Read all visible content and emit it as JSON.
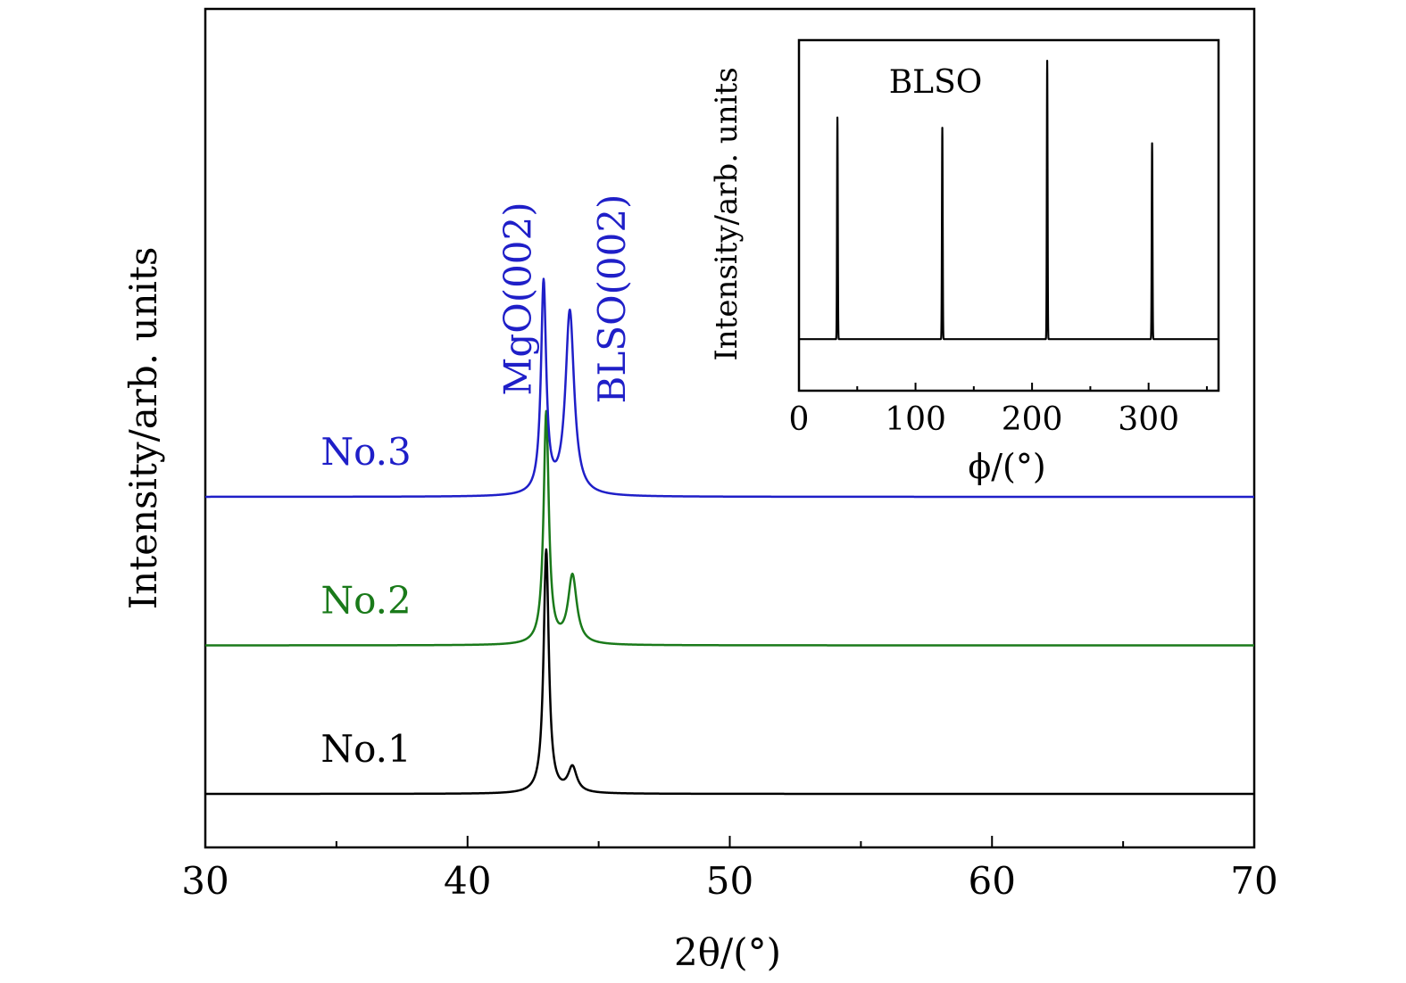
{
  "chart_data": [
    {
      "type": "line",
      "xlabel": "2θ/(°)",
      "ylabel": "Intensity/arb. units",
      "xlim": [
        30,
        70
      ],
      "xticks": [
        30,
        40,
        50,
        60,
        70
      ],
      "y_scale": "arbitrary units, traces vertically offset",
      "series": [
        {
          "name": "No.1",
          "color": "#000000",
          "baseline": 0,
          "peaks": [
            {
              "x": 43.0,
              "height": 8.2,
              "width": 0.12
            },
            {
              "x": 44.0,
              "height": 0.85,
              "width": 0.2
            }
          ]
        },
        {
          "name": "No.2",
          "color": "#1a7a1a",
          "baseline": 5,
          "peaks": [
            {
              "x": 43.0,
              "height": 7.8,
              "width": 0.12
            },
            {
              "x": 44.0,
              "height": 2.3,
              "width": 0.2
            }
          ]
        },
        {
          "name": "No.3",
          "color": "#1f1fc8",
          "baseline": 10,
          "peaks": [
            {
              "x": 42.9,
              "height": 7.1,
              "width": 0.12
            },
            {
              "x": 43.9,
              "height": 6.2,
              "width": 0.2
            }
          ]
        }
      ],
      "annotations": [
        {
          "text": "MgO(002)",
          "x": 42.4,
          "color": "#1f1fc8"
        },
        {
          "text": "BLSO(002)",
          "x": 46.0,
          "color": "#1f1fc8"
        }
      ]
    },
    {
      "type": "line",
      "title": "BLSO",
      "xlabel": "ϕ/(°)",
      "ylabel": "Intensity/arb. units",
      "xlim": [
        0,
        360
      ],
      "xticks": [
        0,
        100,
        200,
        300
      ],
      "ylim": [
        -1,
        5.8
      ],
      "series": [
        {
          "name": "BLSO",
          "color": "#000000",
          "baseline": 0,
          "peaks": [
            {
              "x": 33,
              "height": 4.3
            },
            {
              "x": 123,
              "height": 4.1
            },
            {
              "x": 213,
              "height": 5.4
            },
            {
              "x": 303,
              "height": 3.8
            }
          ]
        }
      ]
    }
  ]
}
